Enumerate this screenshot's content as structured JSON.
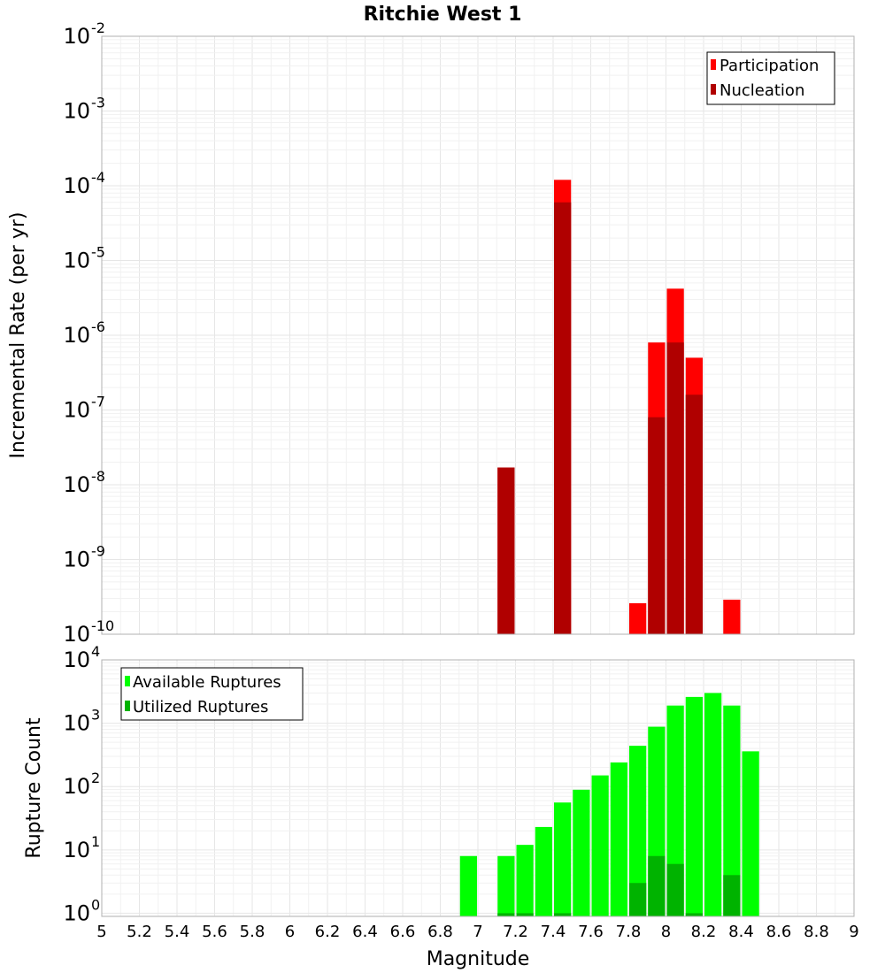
{
  "title": "Ritchie West 1",
  "chart_data": [
    {
      "type": "bar",
      "panel": "top",
      "xlabel": "",
      "ylabel": "Incremental Rate (per yr)",
      "yscale": "log",
      "ylim_exp": [
        -10,
        -2
      ],
      "xlim": [
        5,
        9
      ],
      "bin_width": 0.1,
      "grid": true,
      "legend_placement": "top-right",
      "series": [
        {
          "name": "Participation",
          "color": "#ff0000",
          "x": [
            7.15,
            7.45,
            7.85,
            7.95,
            8.05,
            8.15,
            8.35
          ],
          "values": [
            1.7e-08,
            0.00012,
            2.6e-10,
            8e-07,
            4.2e-06,
            5e-07,
            2.9e-10
          ]
        },
        {
          "name": "Nucleation",
          "color": "#b00000",
          "x": [
            7.15,
            7.45,
            7.95,
            8.05,
            8.15
          ],
          "values": [
            1.7e-08,
            6e-05,
            8e-08,
            8e-07,
            1.6e-07
          ]
        }
      ]
    },
    {
      "type": "bar",
      "panel": "bottom",
      "xlabel": "Magnitude",
      "ylabel": "Rupture Count",
      "yscale": "log",
      "ylim_exp": [
        -0.05,
        4
      ],
      "xlim": [
        5,
        9
      ],
      "bin_width": 0.1,
      "grid": true,
      "legend_placement": "top-left",
      "series": [
        {
          "name": "Available Ruptures",
          "color": "#00ff00",
          "x": [
            6.95,
            7.15,
            7.25,
            7.35,
            7.45,
            7.55,
            7.65,
            7.75,
            7.85,
            7.95,
            8.05,
            8.15,
            8.25,
            8.35,
            8.45
          ],
          "values": [
            8,
            8,
            12,
            23,
            56,
            89,
            150,
            240,
            440,
            880,
            1900,
            2600,
            3000,
            1900,
            360
          ]
        },
        {
          "name": "Utilized Ruptures",
          "color": "#00b300",
          "x": [
            7.15,
            7.25,
            7.45,
            7.85,
            7.95,
            8.05,
            8.15,
            8.35
          ],
          "values": [
            1,
            1,
            1,
            3,
            8,
            6,
            1,
            4
          ]
        }
      ]
    }
  ],
  "x_ticks": [
    "5",
    "5.2",
    "5.4",
    "5.6",
    "5.8",
    "6",
    "6.2",
    "6.4",
    "6.6",
    "6.8",
    "7",
    "7.2",
    "7.4",
    "7.6",
    "7.8",
    "8",
    "8.2",
    "8.4",
    "8.6",
    "8.8",
    "9"
  ],
  "top_y_ticks": [
    {
      "base": "10",
      "exp": "-2"
    },
    {
      "base": "10",
      "exp": "-3"
    },
    {
      "base": "10",
      "exp": "-4"
    },
    {
      "base": "10",
      "exp": "-5"
    },
    {
      "base": "10",
      "exp": "-6"
    },
    {
      "base": "10",
      "exp": "-7"
    },
    {
      "base": "10",
      "exp": "-8"
    },
    {
      "base": "10",
      "exp": "-9"
    },
    {
      "base": "10",
      "exp": "-10"
    }
  ],
  "bottom_y_ticks": [
    {
      "base": "10",
      "exp": "4"
    },
    {
      "base": "10",
      "exp": "3"
    },
    {
      "base": "10",
      "exp": "2"
    },
    {
      "base": "10",
      "exp": "1"
    },
    {
      "base": "10",
      "exp": "0"
    }
  ]
}
